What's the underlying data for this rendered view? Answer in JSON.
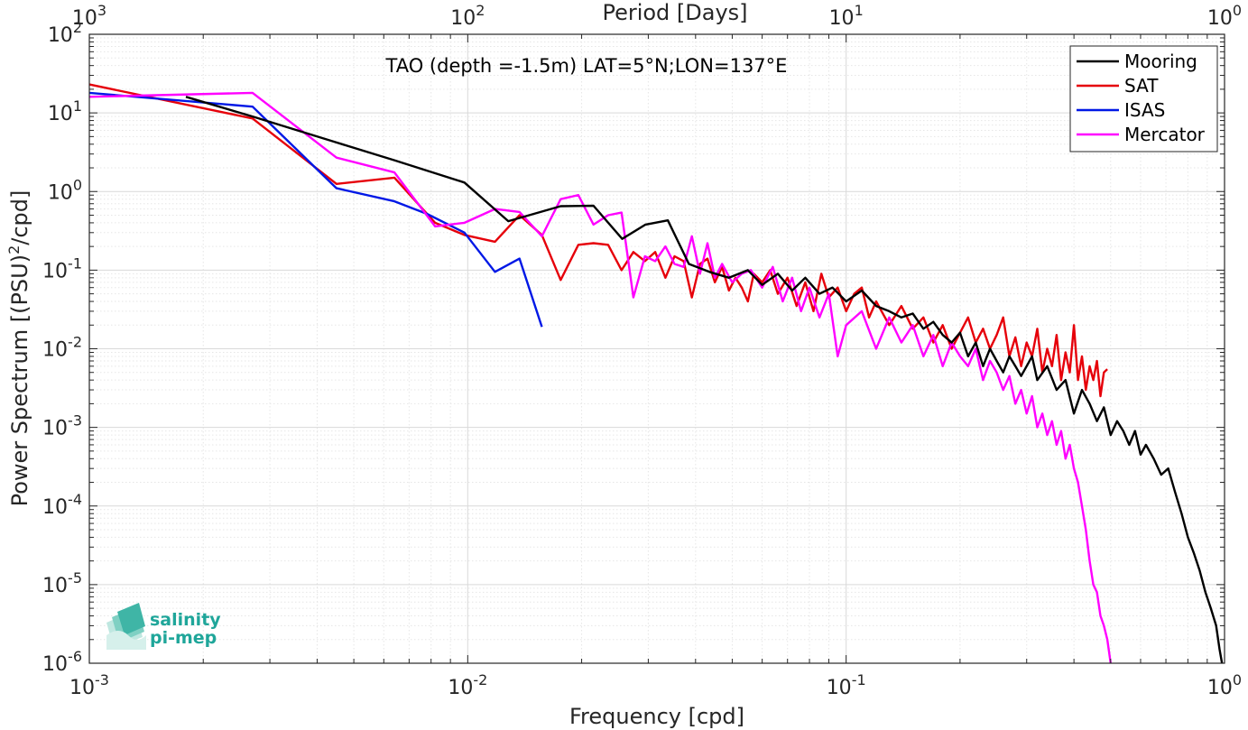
{
  "chart_data": {
    "type": "line",
    "title": "TAO (depth =-1.5m) LAT=5°N;LON=137°E",
    "xlabel": "Frequency [cpd]",
    "ylabel_base": "Power Spectrum [(PSU)",
    "ylabel_exp": "2",
    "ylabel_tail": "/cpd]",
    "x2label": "Period [Days]",
    "xscale": "log",
    "yscale": "log",
    "xlim": [
      0.001,
      1
    ],
    "ylim": [
      1e-06,
      100
    ],
    "grid": true,
    "legend_position": "top-right",
    "x_ticks": [
      {
        "value": 0.001,
        "base": "10",
        "exp": "-3"
      },
      {
        "value": 0.01,
        "base": "10",
        "exp": "-2"
      },
      {
        "value": 0.1,
        "base": "10",
        "exp": "-1"
      },
      {
        "value": 1,
        "base": "10",
        "exp": "0"
      }
    ],
    "x2_ticks": [
      {
        "value": 0.001,
        "base": "10",
        "exp": "3"
      },
      {
        "value": 0.01,
        "base": "10",
        "exp": "2"
      },
      {
        "value": 0.1,
        "base": "10",
        "exp": "1"
      },
      {
        "value": 1,
        "base": "10",
        "exp": "0"
      }
    ],
    "y_ticks": [
      {
        "value": 1e-06,
        "base": "10",
        "exp": "-6"
      },
      {
        "value": 1e-05,
        "base": "10",
        "exp": "-5"
      },
      {
        "value": 0.0001,
        "base": "10",
        "exp": "-4"
      },
      {
        "value": 0.001,
        "base": "10",
        "exp": "-3"
      },
      {
        "value": 0.01,
        "base": "10",
        "exp": "-2"
      },
      {
        "value": 0.1,
        "base": "10",
        "exp": "-1"
      },
      {
        "value": 1,
        "base": "10",
        "exp": "0"
      },
      {
        "value": 10,
        "base": "10",
        "exp": "1"
      },
      {
        "value": 100,
        "base": "10",
        "exp": "2"
      }
    ],
    "series": [
      {
        "name": "Mooring",
        "color": "#000000",
        "points": [
          [
            0.0018,
            16
          ],
          [
            0.0027,
            9
          ],
          [
            0.0045,
            4.2
          ],
          [
            0.0064,
            2.5
          ],
          [
            0.0098,
            1.3
          ],
          [
            0.0128,
            0.42
          ],
          [
            0.0176,
            0.65
          ],
          [
            0.0215,
            0.66
          ],
          [
            0.0256,
            0.25
          ],
          [
            0.0295,
            0.38
          ],
          [
            0.0338,
            0.43
          ],
          [
            0.0384,
            0.12
          ],
          [
            0.0435,
            0.095
          ],
          [
            0.049,
            0.08
          ],
          [
            0.055,
            0.1
          ],
          [
            0.06,
            0.065
          ],
          [
            0.066,
            0.09
          ],
          [
            0.072,
            0.055
          ],
          [
            0.078,
            0.08
          ],
          [
            0.085,
            0.05
          ],
          [
            0.092,
            0.06
          ],
          [
            0.1,
            0.04
          ],
          [
            0.11,
            0.055
          ],
          [
            0.12,
            0.035
          ],
          [
            0.13,
            0.03
          ],
          [
            0.14,
            0.025
          ],
          [
            0.15,
            0.028
          ],
          [
            0.16,
            0.018
          ],
          [
            0.17,
            0.022
          ],
          [
            0.18,
            0.015
          ],
          [
            0.19,
            0.012
          ],
          [
            0.2,
            0.016
          ],
          [
            0.21,
            0.008
          ],
          [
            0.22,
            0.012
          ],
          [
            0.23,
            0.006
          ],
          [
            0.24,
            0.01
          ],
          [
            0.25,
            0.007
          ],
          [
            0.26,
            0.005
          ],
          [
            0.27,
            0.008
          ],
          [
            0.28,
            0.006
          ],
          [
            0.29,
            0.0045
          ],
          [
            0.3,
            0.006
          ],
          [
            0.31,
            0.008
          ],
          [
            0.32,
            0.004
          ],
          [
            0.34,
            0.006
          ],
          [
            0.36,
            0.003
          ],
          [
            0.38,
            0.004
          ],
          [
            0.4,
            0.0015
          ],
          [
            0.42,
            0.003
          ],
          [
            0.44,
            0.002
          ],
          [
            0.46,
            0.0012
          ],
          [
            0.48,
            0.0018
          ],
          [
            0.5,
            0.0008
          ],
          [
            0.52,
            0.0012
          ],
          [
            0.54,
            0.0009
          ],
          [
            0.56,
            0.0006
          ],
          [
            0.58,
            0.0009
          ],
          [
            0.6,
            0.00045
          ],
          [
            0.62,
            0.0006
          ],
          [
            0.65,
            0.0004
          ],
          [
            0.68,
            0.00025
          ],
          [
            0.71,
            0.0003
          ],
          [
            0.74,
            0.00015
          ],
          [
            0.77,
            8e-05
          ],
          [
            0.8,
            4e-05
          ],
          [
            0.83,
            2.5e-05
          ],
          [
            0.86,
            1.5e-05
          ],
          [
            0.89,
            8e-06
          ],
          [
            0.92,
            5e-06
          ],
          [
            0.95,
            3e-06
          ],
          [
            0.97,
            1.5e-06
          ],
          [
            0.985,
            1e-06
          ]
        ]
      },
      {
        "name": "SAT",
        "color": "#e6000a",
        "points": [
          [
            0.001,
            23
          ],
          [
            0.0027,
            8.5
          ],
          [
            0.0045,
            1.25
          ],
          [
            0.0064,
            1.5
          ],
          [
            0.0082,
            0.4
          ],
          [
            0.0098,
            0.28
          ],
          [
            0.0118,
            0.23
          ],
          [
            0.0137,
            0.5
          ],
          [
            0.0157,
            0.28
          ],
          [
            0.0176,
            0.075
          ],
          [
            0.0196,
            0.21
          ],
          [
            0.0215,
            0.22
          ],
          [
            0.0235,
            0.21
          ],
          [
            0.0255,
            0.1
          ],
          [
            0.0274,
            0.17
          ],
          [
            0.0294,
            0.13
          ],
          [
            0.0313,
            0.17
          ],
          [
            0.0333,
            0.08
          ],
          [
            0.0352,
            0.15
          ],
          [
            0.0372,
            0.13
          ],
          [
            0.0391,
            0.045
          ],
          [
            0.0411,
            0.12
          ],
          [
            0.043,
            0.14
          ],
          [
            0.045,
            0.07
          ],
          [
            0.047,
            0.11
          ],
          [
            0.049,
            0.055
          ],
          [
            0.051,
            0.08
          ],
          [
            0.053,
            0.06
          ],
          [
            0.055,
            0.04
          ],
          [
            0.057,
            0.09
          ],
          [
            0.06,
            0.07
          ],
          [
            0.063,
            0.1
          ],
          [
            0.066,
            0.05
          ],
          [
            0.07,
            0.08
          ],
          [
            0.074,
            0.035
          ],
          [
            0.078,
            0.07
          ],
          [
            0.082,
            0.03
          ],
          [
            0.086,
            0.09
          ],
          [
            0.09,
            0.045
          ],
          [
            0.095,
            0.06
          ],
          [
            0.1,
            0.03
          ],
          [
            0.105,
            0.05
          ],
          [
            0.11,
            0.06
          ],
          [
            0.115,
            0.025
          ],
          [
            0.12,
            0.04
          ],
          [
            0.13,
            0.02
          ],
          [
            0.14,
            0.035
          ],
          [
            0.15,
            0.018
          ],
          [
            0.16,
            0.025
          ],
          [
            0.17,
            0.012
          ],
          [
            0.18,
            0.02
          ],
          [
            0.19,
            0.01
          ],
          [
            0.2,
            0.016
          ],
          [
            0.21,
            0.025
          ],
          [
            0.22,
            0.012
          ],
          [
            0.23,
            0.018
          ],
          [
            0.24,
            0.01
          ],
          [
            0.25,
            0.015
          ],
          [
            0.26,
            0.025
          ],
          [
            0.27,
            0.008
          ],
          [
            0.28,
            0.014
          ],
          [
            0.29,
            0.006
          ],
          [
            0.3,
            0.012
          ],
          [
            0.31,
            0.008
          ],
          [
            0.32,
            0.018
          ],
          [
            0.33,
            0.005
          ],
          [
            0.34,
            0.01
          ],
          [
            0.35,
            0.006
          ],
          [
            0.36,
            0.015
          ],
          [
            0.37,
            0.004
          ],
          [
            0.38,
            0.009
          ],
          [
            0.39,
            0.005
          ],
          [
            0.4,
            0.02
          ],
          [
            0.41,
            0.004
          ],
          [
            0.42,
            0.008
          ],
          [
            0.43,
            0.003
          ],
          [
            0.44,
            0.006
          ],
          [
            0.45,
            0.004
          ],
          [
            0.46,
            0.007
          ],
          [
            0.47,
            0.0025
          ],
          [
            0.48,
            0.005
          ],
          [
            0.49,
            0.0055
          ]
        ]
      },
      {
        "name": "ISAS",
        "color": "#0018e6",
        "points": [
          [
            0.001,
            18
          ],
          [
            0.0027,
            12
          ],
          [
            0.0045,
            1.1
          ],
          [
            0.0064,
            0.75
          ],
          [
            0.0078,
            0.52
          ],
          [
            0.0098,
            0.3
          ],
          [
            0.0118,
            0.095
          ],
          [
            0.0137,
            0.14
          ],
          [
            0.0157,
            0.019
          ]
        ]
      },
      {
        "name": "Mercator",
        "color": "#ff00ff",
        "points": [
          [
            0.001,
            16
          ],
          [
            0.0027,
            18
          ],
          [
            0.0045,
            2.7
          ],
          [
            0.0064,
            1.75
          ],
          [
            0.0082,
            0.36
          ],
          [
            0.0098,
            0.4
          ],
          [
            0.0118,
            0.6
          ],
          [
            0.0137,
            0.55
          ],
          [
            0.0157,
            0.27
          ],
          [
            0.0176,
            0.8
          ],
          [
            0.0196,
            0.9
          ],
          [
            0.0215,
            0.38
          ],
          [
            0.0235,
            0.5
          ],
          [
            0.0255,
            0.54
          ],
          [
            0.0274,
            0.045
          ],
          [
            0.0294,
            0.15
          ],
          [
            0.0313,
            0.13
          ],
          [
            0.0333,
            0.2
          ],
          [
            0.0352,
            0.12
          ],
          [
            0.0372,
            0.11
          ],
          [
            0.0391,
            0.27
          ],
          [
            0.0411,
            0.09
          ],
          [
            0.043,
            0.22
          ],
          [
            0.045,
            0.08
          ],
          [
            0.047,
            0.12
          ],
          [
            0.05,
            0.07
          ],
          [
            0.053,
            0.09
          ],
          [
            0.056,
            0.1
          ],
          [
            0.06,
            0.06
          ],
          [
            0.064,
            0.11
          ],
          [
            0.068,
            0.04
          ],
          [
            0.072,
            0.08
          ],
          [
            0.076,
            0.03
          ],
          [
            0.08,
            0.06
          ],
          [
            0.085,
            0.025
          ],
          [
            0.09,
            0.05
          ],
          [
            0.095,
            0.008
          ],
          [
            0.1,
            0.02
          ],
          [
            0.11,
            0.03
          ],
          [
            0.12,
            0.01
          ],
          [
            0.13,
            0.025
          ],
          [
            0.14,
            0.012
          ],
          [
            0.15,
            0.02
          ],
          [
            0.16,
            0.008
          ],
          [
            0.17,
            0.015
          ],
          [
            0.18,
            0.006
          ],
          [
            0.19,
            0.012
          ],
          [
            0.2,
            0.008
          ],
          [
            0.21,
            0.006
          ],
          [
            0.22,
            0.01
          ],
          [
            0.23,
            0.004
          ],
          [
            0.24,
            0.007
          ],
          [
            0.25,
            0.005
          ],
          [
            0.26,
            0.003
          ],
          [
            0.27,
            0.0045
          ],
          [
            0.28,
            0.002
          ],
          [
            0.29,
            0.003
          ],
          [
            0.3,
            0.0015
          ],
          [
            0.31,
            0.0025
          ],
          [
            0.32,
            0.001
          ],
          [
            0.33,
            0.0015
          ],
          [
            0.34,
            0.0008
          ],
          [
            0.35,
            0.0012
          ],
          [
            0.36,
            0.0006
          ],
          [
            0.37,
            0.0009
          ],
          [
            0.38,
            0.0004
          ],
          [
            0.39,
            0.0006
          ],
          [
            0.4,
            0.0003
          ],
          [
            0.41,
            0.0002
          ],
          [
            0.42,
            0.0001
          ],
          [
            0.43,
            5e-05
          ],
          [
            0.44,
            2e-05
          ],
          [
            0.45,
            1e-05
          ],
          [
            0.46,
            8e-06
          ],
          [
            0.47,
            4e-06
          ],
          [
            0.48,
            3e-06
          ],
          [
            0.49,
            2e-06
          ],
          [
            0.5,
            1e-06
          ]
        ]
      }
    ]
  },
  "logo": {
    "line1": "salinity",
    "line2": "pi-mep",
    "color": "#1fa69a"
  }
}
